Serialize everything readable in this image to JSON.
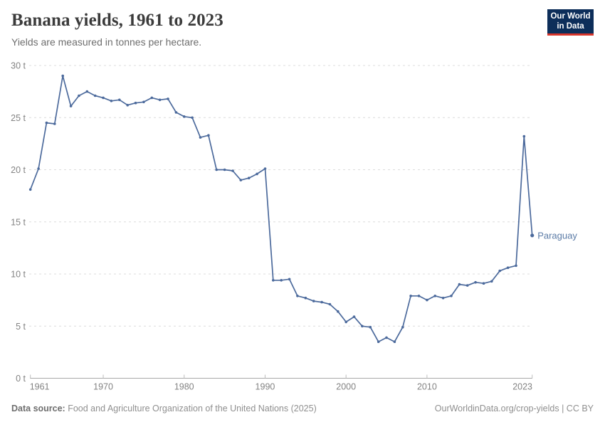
{
  "header": {
    "title": "Banana yields, 1961 to 2023",
    "subtitle": "Yields are measured in tonnes per hectare."
  },
  "logo": {
    "line1": "Our World",
    "line2": "in Data",
    "bg_color": "#0d2e5a",
    "accent_color": "#d7352b"
  },
  "chart_data": {
    "type": "line",
    "title": "Banana yields, 1961 to 2023",
    "ylabel": "tonnes per hectare",
    "xlabel": "",
    "xlim": [
      1961,
      2023
    ],
    "ylim": [
      0,
      30
    ],
    "grid": "horizontal-dashed",
    "legend_position": "end-of-line-label",
    "yticks": {
      "values": [
        0,
        5,
        10,
        15,
        20,
        25,
        30
      ],
      "labels": [
        "0 t",
        "5 t",
        "10 t",
        "15 t",
        "20 t",
        "25 t",
        "30 t"
      ]
    },
    "xticks": {
      "values": [
        1961,
        1970,
        1980,
        1990,
        2000,
        2010,
        2023
      ],
      "labels": [
        "1961",
        "1970",
        "1980",
        "1990",
        "2000",
        "2010",
        "2023"
      ]
    },
    "series": [
      {
        "name": "Paraguay",
        "color": "#4C6A9C",
        "label_color": "#5b7ba6",
        "x": [
          1961,
          1962,
          1963,
          1964,
          1965,
          1966,
          1967,
          1968,
          1969,
          1970,
          1971,
          1972,
          1973,
          1974,
          1975,
          1976,
          1977,
          1978,
          1979,
          1980,
          1981,
          1982,
          1983,
          1984,
          1985,
          1986,
          1987,
          1988,
          1989,
          1990,
          1991,
          1992,
          1993,
          1994,
          1995,
          1996,
          1997,
          1998,
          1999,
          2000,
          2001,
          2002,
          2003,
          2004,
          2005,
          2006,
          2007,
          2008,
          2009,
          2010,
          2011,
          2012,
          2013,
          2014,
          2015,
          2016,
          2017,
          2018,
          2019,
          2020,
          2021,
          2022,
          2023
        ],
        "values": [
          18.1,
          20.1,
          24.5,
          24.4,
          29.0,
          26.1,
          27.1,
          27.5,
          27.1,
          26.9,
          26.6,
          26.7,
          26.2,
          26.4,
          26.5,
          26.9,
          26.7,
          26.8,
          25.5,
          25.1,
          25.0,
          23.1,
          23.3,
          20.0,
          20.0,
          19.9,
          19.0,
          19.2,
          19.6,
          20.1,
          9.4,
          9.4,
          9.5,
          7.9,
          7.7,
          7.4,
          7.3,
          7.1,
          6.4,
          5.4,
          5.9,
          5.0,
          4.9,
          3.5,
          3.9,
          3.5,
          4.9,
          7.9,
          7.9,
          7.5,
          7.9,
          7.7,
          7.9,
          9.0,
          8.9,
          9.2,
          9.1,
          9.3,
          10.3,
          10.6,
          10.8,
          23.2,
          13.7
        ]
      }
    ]
  },
  "footer": {
    "data_source_label": "Data source:",
    "data_source": "Food and Agriculture Organization of the United Nations (2025)",
    "attribution": "OurWorldinData.org/crop-yields | CC BY"
  }
}
